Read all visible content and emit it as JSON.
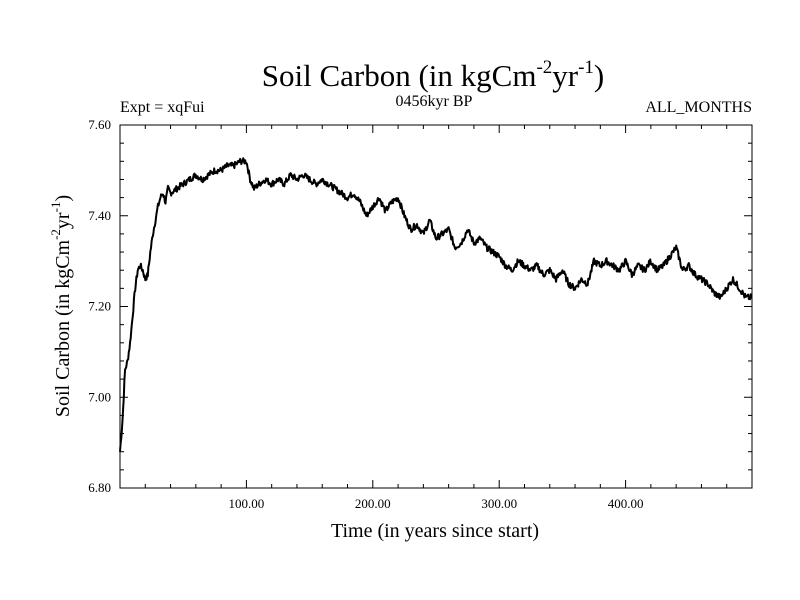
{
  "chart_data": {
    "type": "line",
    "title": {
      "main": "Soil Carbon (in kgCm",
      "exp1": "-2",
      "mid": "yr",
      "exp2": "-1",
      "close": ")"
    },
    "subtitle_left": "Expt = xqFui",
    "subtitle_center": "0456kyr BP",
    "subtitle_right": "ALL_MONTHS",
    "xlabel": "Time (in years since start)",
    "ylabel": {
      "main": "Soil Carbon (in kgCm",
      "exp1": "-2",
      "mid": "yr",
      "exp2": "-1",
      "close": ")"
    },
    "xlim": [
      0,
      500
    ],
    "ylim": [
      6.8,
      7.6
    ],
    "xticks": [
      100,
      200,
      300,
      400
    ],
    "xtick_labels": [
      "100.00",
      "200.00",
      "300.00",
      "400.00"
    ],
    "yticks": [
      6.8,
      7.0,
      7.2,
      7.4,
      7.6
    ],
    "ytick_labels": [
      "6.80",
      "7.00",
      "7.20",
      "7.40",
      "7.60"
    ],
    "series": [
      {
        "name": "Soil Carbon",
        "x": [
          0,
          2,
          4,
          6,
          8,
          10,
          12,
          14,
          16,
          18,
          20,
          22,
          24,
          26,
          28,
          30,
          32,
          34,
          36,
          38,
          40,
          45,
          50,
          55,
          60,
          65,
          70,
          75,
          80,
          85,
          90,
          95,
          100,
          103,
          106,
          110,
          115,
          120,
          125,
          130,
          135,
          140,
          145,
          150,
          155,
          160,
          165,
          170,
          175,
          180,
          185,
          190,
          195,
          200,
          205,
          210,
          215,
          220,
          225,
          230,
          235,
          240,
          245,
          250,
          255,
          260,
          265,
          270,
          275,
          280,
          285,
          290,
          295,
          300,
          305,
          310,
          315,
          320,
          325,
          330,
          335,
          340,
          345,
          350,
          355,
          360,
          365,
          370,
          375,
          380,
          385,
          390,
          395,
          400,
          405,
          410,
          415,
          420,
          425,
          430,
          435,
          440,
          445,
          450,
          455,
          460,
          465,
          470,
          475,
          480,
          485,
          490,
          495,
          500
        ],
        "y": [
          6.88,
          6.95,
          7.06,
          7.08,
          7.12,
          7.18,
          7.24,
          7.28,
          7.29,
          7.28,
          7.26,
          7.27,
          7.32,
          7.36,
          7.39,
          7.42,
          7.44,
          7.45,
          7.43,
          7.46,
          7.45,
          7.46,
          7.47,
          7.48,
          7.49,
          7.48,
          7.49,
          7.5,
          7.5,
          7.51,
          7.51,
          7.52,
          7.52,
          7.48,
          7.46,
          7.47,
          7.48,
          7.47,
          7.48,
          7.47,
          7.49,
          7.48,
          7.49,
          7.48,
          7.47,
          7.48,
          7.47,
          7.46,
          7.45,
          7.44,
          7.45,
          7.43,
          7.4,
          7.42,
          7.44,
          7.41,
          7.43,
          7.44,
          7.4,
          7.37,
          7.38,
          7.36,
          7.39,
          7.35,
          7.36,
          7.37,
          7.33,
          7.34,
          7.37,
          7.34,
          7.35,
          7.33,
          7.32,
          7.31,
          7.29,
          7.28,
          7.3,
          7.29,
          7.28,
          7.29,
          7.27,
          7.28,
          7.26,
          7.28,
          7.25,
          7.24,
          7.26,
          7.25,
          7.3,
          7.29,
          7.3,
          7.29,
          7.28,
          7.3,
          7.27,
          7.29,
          7.28,
          7.3,
          7.28,
          7.29,
          7.31,
          7.33,
          7.28,
          7.29,
          7.27,
          7.26,
          7.25,
          7.23,
          7.22,
          7.24,
          7.26,
          7.24,
          7.22,
          7.22
        ]
      }
    ]
  }
}
